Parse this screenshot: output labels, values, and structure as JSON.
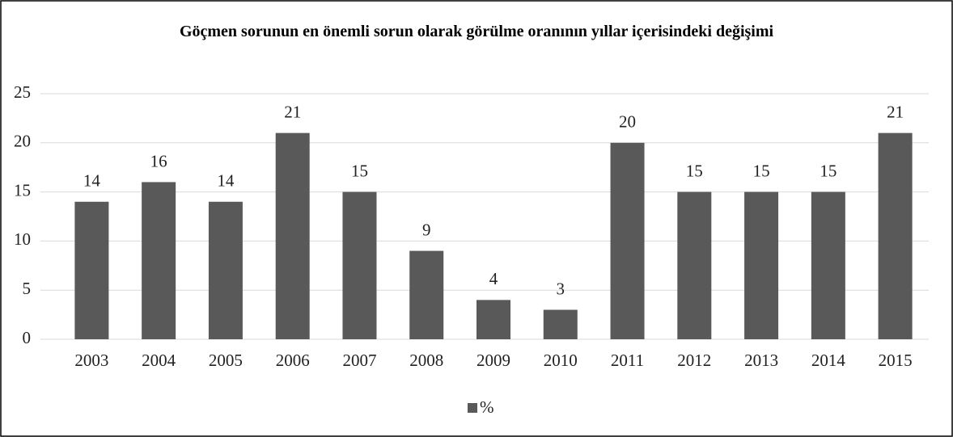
{
  "chart_data": {
    "type": "bar",
    "title": "Göçmen sorunun en önemli sorun olarak görülme oranının yıllar içerisindeki değişimi",
    "categories": [
      "2003",
      "2004",
      "2005",
      "2006",
      "2007",
      "2008",
      "2009",
      "2010",
      "2011",
      "2012",
      "2013",
      "2014",
      "2015"
    ],
    "series": [
      {
        "name": "%",
        "color": "#595959",
        "values": [
          14,
          16,
          14,
          21,
          15,
          9,
          4,
          3,
          20,
          15,
          15,
          15,
          21
        ]
      }
    ],
    "ylim": [
      0,
      25
    ],
    "yticks": [
      0,
      5,
      10,
      15,
      20,
      25
    ],
    "grid": true,
    "legend": "bottom"
  }
}
